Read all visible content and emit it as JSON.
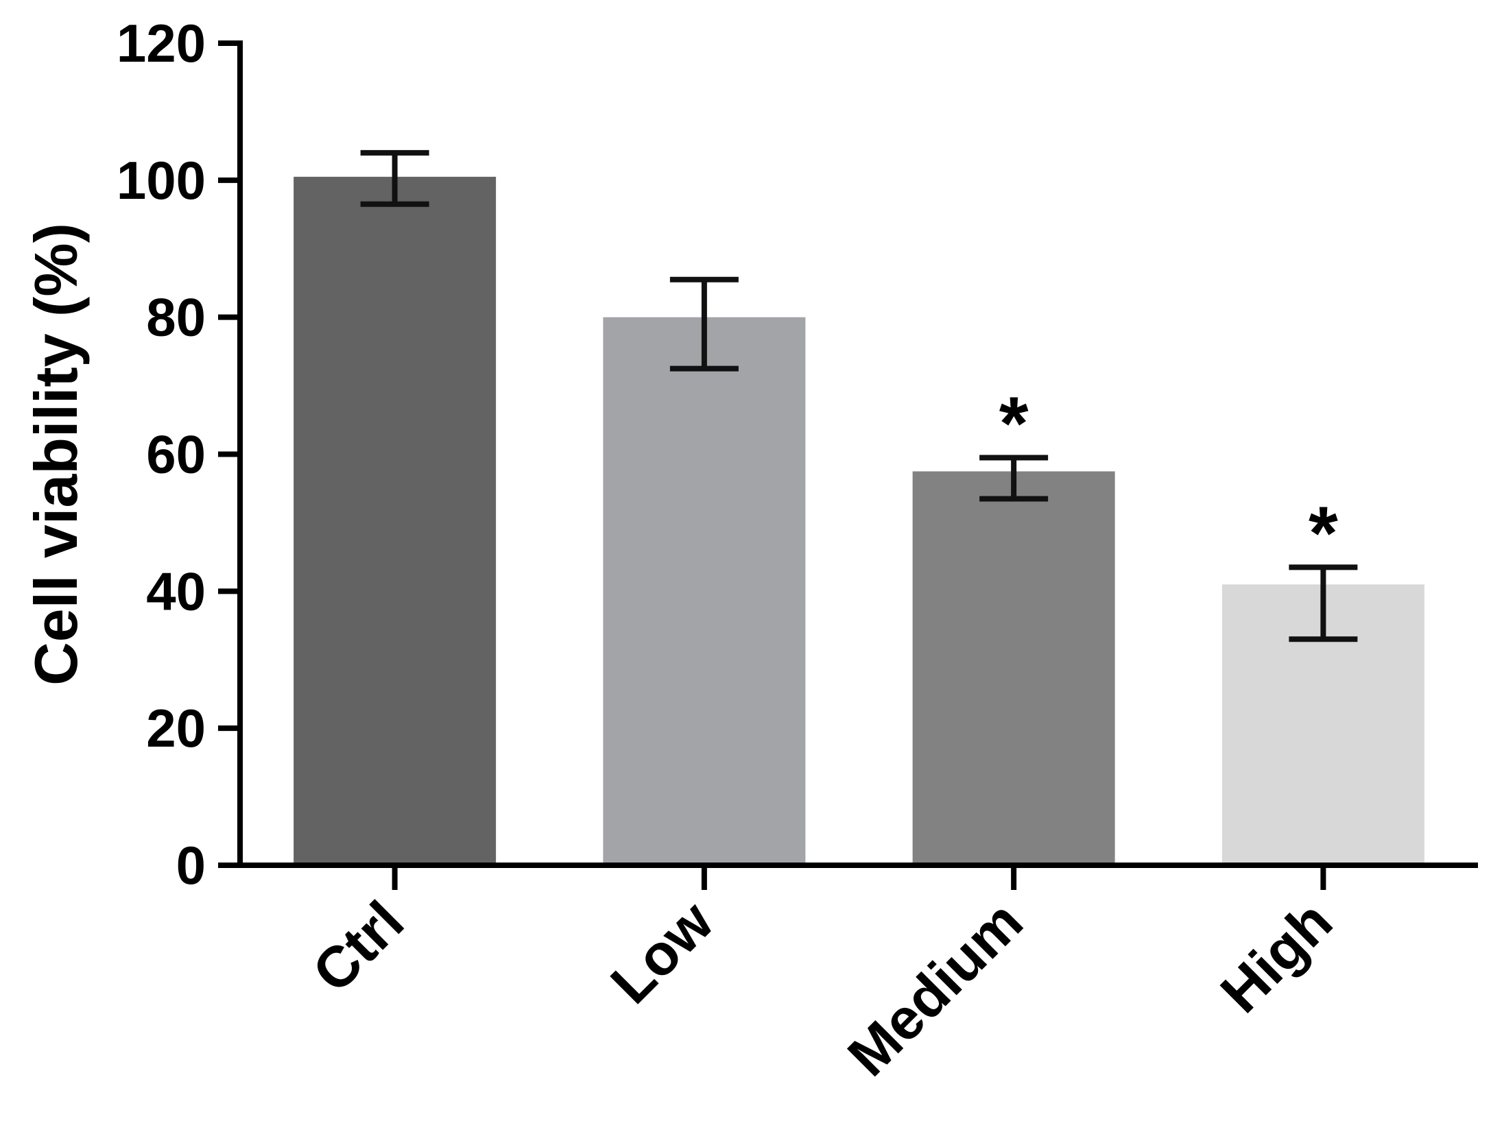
{
  "chart_data": {
    "type": "bar",
    "title": "",
    "xlabel": "",
    "ylabel": "Cell viability (%)",
    "ylim": [
      0,
      120
    ],
    "yticks": [
      0,
      20,
      40,
      60,
      80,
      100,
      120
    ],
    "categories": [
      "Ctrl",
      "Low",
      "Medium",
      "High"
    ],
    "values": [
      100.5,
      80,
      57.5,
      41
    ],
    "error_upper": [
      104,
      85.5,
      59.5,
      43.5
    ],
    "error_lower": [
      96.5,
      72.5,
      53.5,
      33
    ],
    "significance": [
      "",
      "",
      "*",
      "*"
    ],
    "bar_colors": [
      "#636363",
      "#a3a4a8",
      "#828282",
      "#d8d8d8"
    ],
    "grid": false,
    "legend": "none"
  }
}
